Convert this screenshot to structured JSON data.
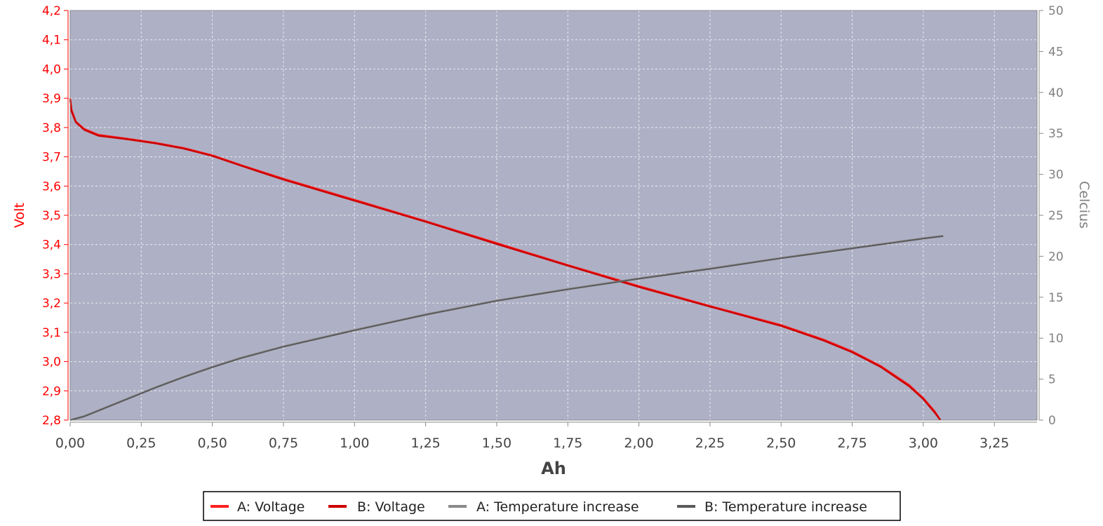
{
  "chart_data": {
    "type": "line",
    "xlabel": "Ah",
    "ylabel_left": "Volt",
    "ylabel_right": "Celcius",
    "xlim": [
      0,
      3.4
    ],
    "ylim_left": [
      2.8,
      4.2
    ],
    "ylim_right": [
      0,
      50
    ],
    "x_ticks": [
      "0,00",
      "0,25",
      "0,50",
      "0,75",
      "1,00",
      "1,25",
      "1,50",
      "1,75",
      "2,00",
      "2,25",
      "2,50",
      "2,75",
      "3,00",
      "3,25"
    ],
    "y_left_ticks": [
      "2,8",
      "2,9",
      "3,0",
      "3,1",
      "3,2",
      "3,3",
      "3,4",
      "3,5",
      "3,6",
      "3,7",
      "3,8",
      "3,9",
      "4,0",
      "4,1",
      "4,2"
    ],
    "y_right_ticks": [
      "0",
      "5",
      "10",
      "15",
      "20",
      "25",
      "30",
      "35",
      "40",
      "45",
      "50"
    ],
    "grid": true,
    "legend_position": "bottom",
    "colors": {
      "plot_background": "#aeb0c5",
      "voltage_a": "#ff2020",
      "voltage_b": "#cc0000",
      "temp_a": "#8a8a8a",
      "temp_b": "#5a5a5a"
    },
    "series": [
      {
        "name": "A: Voltage",
        "axis": "left",
        "x": [
          0.0,
          0.005,
          0.02,
          0.05,
          0.1,
          0.2,
          0.3,
          0.4,
          0.5,
          0.6,
          0.75,
          1.0,
          1.25,
          1.5,
          1.75,
          2.0,
          2.25,
          2.5,
          2.65,
          2.75,
          2.85,
          2.95,
          3.0,
          3.04,
          3.06
        ],
        "y": [
          3.9,
          3.86,
          3.82,
          3.795,
          3.775,
          3.762,
          3.748,
          3.73,
          3.705,
          3.672,
          3.625,
          3.553,
          3.48,
          3.405,
          3.33,
          3.258,
          3.19,
          3.125,
          3.075,
          3.035,
          2.985,
          2.92,
          2.875,
          2.83,
          2.8
        ]
      },
      {
        "name": "B: Voltage",
        "axis": "left",
        "x": [
          0.0,
          0.005,
          0.02,
          0.05,
          0.1,
          0.2,
          0.3,
          0.4,
          0.5,
          0.6,
          0.75,
          1.0,
          1.25,
          1.5,
          1.75,
          2.0,
          2.25,
          2.5,
          2.65,
          2.75,
          2.85,
          2.95,
          3.0,
          3.04,
          3.06
        ],
        "y": [
          3.895,
          3.855,
          3.818,
          3.792,
          3.772,
          3.76,
          3.746,
          3.728,
          3.703,
          3.67,
          3.622,
          3.55,
          3.478,
          3.402,
          3.328,
          3.255,
          3.188,
          3.122,
          3.072,
          3.032,
          2.982,
          2.916,
          2.872,
          2.826,
          2.8
        ]
      },
      {
        "name": "A: Temperature increase",
        "axis": "right",
        "x": [
          0.0,
          0.05,
          0.1,
          0.2,
          0.3,
          0.4,
          0.5,
          0.6,
          0.75,
          1.0,
          1.25,
          1.5,
          1.75,
          2.0,
          2.25,
          2.5,
          2.75,
          3.0,
          3.07
        ],
        "y": [
          0.0,
          0.5,
          1.2,
          2.6,
          4.0,
          5.3,
          6.5,
          7.6,
          9.0,
          11.0,
          12.9,
          14.6,
          16.0,
          17.3,
          18.5,
          19.8,
          21.0,
          22.2,
          22.5
        ]
      },
      {
        "name": "B: Temperature increase",
        "axis": "right",
        "x": [
          0.0,
          0.05,
          0.1,
          0.2,
          0.3,
          0.4,
          0.5,
          0.6,
          0.75,
          1.0,
          1.25,
          1.5,
          1.75,
          2.0,
          2.25,
          2.5,
          2.75,
          3.0,
          3.07
        ],
        "y": [
          0.0,
          0.45,
          1.15,
          2.55,
          3.95,
          5.25,
          6.45,
          7.55,
          8.95,
          10.95,
          12.85,
          14.55,
          15.95,
          17.25,
          18.45,
          19.75,
          20.95,
          22.15,
          22.45
        ]
      }
    ]
  }
}
